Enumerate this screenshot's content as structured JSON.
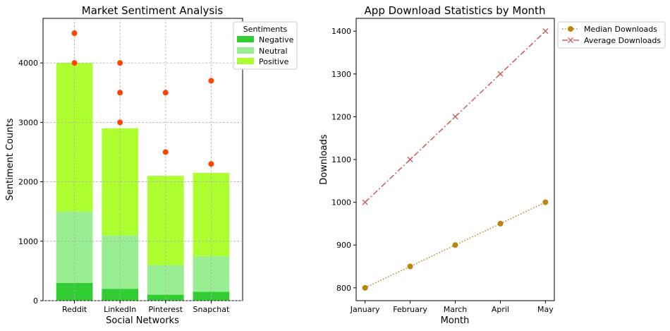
{
  "chart_data": [
    {
      "type": "bar",
      "stacked": true,
      "title": "Market Sentiment Analysis",
      "xlabel": "Social Networks",
      "ylabel": "Sentiment Counts",
      "categories": [
        "Reddit",
        "LinkedIn",
        "Pinterest",
        "Snapchat"
      ],
      "ylim": [
        0,
        4750
      ],
      "yticks": [
        0,
        1000,
        2000,
        3000,
        4000
      ],
      "grid": true,
      "legend": {
        "title": "Sentiments",
        "placement": "upper-right-outside"
      },
      "series": [
        {
          "name": "Negative",
          "color": "#32cd32",
          "values": [
            300,
            200,
            100,
            150
          ]
        },
        {
          "name": "Neutral",
          "color": "#98ee90",
          "values": [
            1200,
            900,
            500,
            600
          ]
        },
        {
          "name": "Positive",
          "color": "#adff2f",
          "values": [
            2500,
            1800,
            1500,
            1400
          ]
        }
      ],
      "outliers": {
        "color": "#ff4500",
        "points": [
          {
            "category": "Reddit",
            "values": [
              4500,
              4000
            ]
          },
          {
            "category": "LinkedIn",
            "values": [
              4000,
              3500,
              3000
            ]
          },
          {
            "category": "Pinterest",
            "values": [
              3500,
              2500
            ]
          },
          {
            "category": "Snapchat",
            "values": [
              3700,
              2300
            ]
          }
        ]
      }
    },
    {
      "type": "line",
      "title": "App Download Statistics by Month",
      "xlabel": "Month",
      "ylabel": "Downloads",
      "categories": [
        "January",
        "February",
        "March",
        "April",
        "May"
      ],
      "ylim": [
        770,
        1430
      ],
      "yticks": [
        800,
        900,
        1000,
        1100,
        1200,
        1300,
        1400
      ],
      "grid": false,
      "legend": {
        "placement": "upper-right-outside"
      },
      "series": [
        {
          "name": "Median Downloads",
          "color": "#b8860b",
          "style": "dotted",
          "marker": "circle",
          "values": [
            800,
            850,
            900,
            950,
            1000
          ]
        },
        {
          "name": "Average Downloads",
          "color": "#cd5c5c",
          "style": "dashdot",
          "marker": "x",
          "values": [
            1000,
            1100,
            1200,
            1300,
            1400
          ]
        }
      ]
    }
  ]
}
